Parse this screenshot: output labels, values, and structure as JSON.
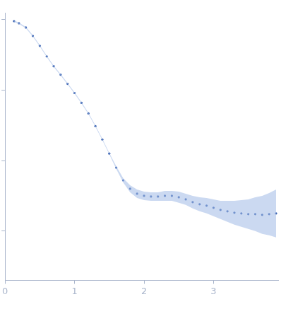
{
  "chart_data": {
    "type": "scatter",
    "x": [
      0.13,
      0.2,
      0.3,
      0.4,
      0.5,
      0.6,
      0.7,
      0.8,
      0.9,
      1.0,
      1.1,
      1.2,
      1.3,
      1.4,
      1.5,
      1.6,
      1.7,
      1.8,
      1.9,
      2.0,
      2.1,
      2.2,
      2.3,
      2.4,
      2.5,
      2.6,
      2.7,
      2.8,
      2.9,
      3.0,
      3.1,
      3.2,
      3.3,
      3.4,
      3.5,
      3.6,
      3.7,
      3.8,
      3.9
    ],
    "values": [
      3.98,
      3.95,
      3.89,
      3.77,
      3.63,
      3.48,
      3.34,
      3.22,
      3.09,
      2.96,
      2.82,
      2.67,
      2.49,
      2.3,
      2.1,
      1.9,
      1.72,
      1.6,
      1.53,
      1.5,
      1.49,
      1.49,
      1.5,
      1.5,
      1.48,
      1.45,
      1.41,
      1.38,
      1.36,
      1.33,
      1.3,
      1.28,
      1.26,
      1.25,
      1.24,
      1.24,
      1.23,
      1.24,
      1.25
    ],
    "errors": [
      0.01,
      0.01,
      0.01,
      0.01,
      0.01,
      0.01,
      0.01,
      0.01,
      0.01,
      0.01,
      0.01,
      0.01,
      0.01,
      0.01,
      0.01,
      0.02,
      0.03,
      0.05,
      0.06,
      0.06,
      0.06,
      0.06,
      0.07,
      0.07,
      0.08,
      0.08,
      0.09,
      0.1,
      0.11,
      0.12,
      0.13,
      0.15,
      0.17,
      0.19,
      0.21,
      0.24,
      0.27,
      0.3,
      0.34
    ],
    "color": "#3a62b0",
    "marker": "circle",
    "xlim": [
      0,
      3.93
    ],
    "xticks": [
      0,
      1,
      2,
      3
    ],
    "ylim": [
      0.3,
      4.1
    ],
    "yticks": [
      1,
      2,
      3,
      4
    ],
    "grid": false,
    "tick_labels": "x"
  }
}
